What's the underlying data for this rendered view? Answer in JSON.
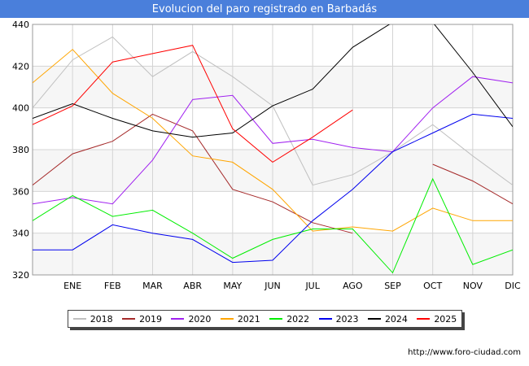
{
  "title": "Evolucion del paro registrado en Barbadás",
  "source": "http://www.foro-ciudad.com",
  "chart_data": {
    "type": "line",
    "title": "Evolucion del paro registrado en Barbadás",
    "categories": [
      "",
      "ENE",
      "FEB",
      "MAR",
      "ABR",
      "MAY",
      "JUN",
      "JUL",
      "AGO",
      "SEP",
      "OCT",
      "NOV",
      "DIC"
    ],
    "ylim": [
      320,
      440
    ],
    "yticks": [
      320,
      340,
      360,
      380,
      400,
      420,
      440
    ],
    "grid": true,
    "legend_position": "bottom",
    "series": [
      {
        "name": "2018",
        "color": "#c0c0c0",
        "values": [
          400,
          423,
          434,
          415,
          427,
          415,
          401,
          363,
          368,
          379,
          392,
          377,
          363
        ]
      },
      {
        "name": "2019",
        "color": "#a52a2a",
        "values": [
          363,
          378,
          384,
          397,
          389,
          361,
          355,
          345,
          340,
          null,
          373,
          365,
          354
        ]
      },
      {
        "name": "2020",
        "color": "#a020f0",
        "values": [
          354,
          357,
          354,
          375,
          404,
          406,
          383,
          385,
          381,
          379,
          400,
          415,
          412
        ]
      },
      {
        "name": "2021",
        "color": "#ffa500",
        "values": [
          412,
          428,
          407,
          395,
          377,
          374,
          361,
          341,
          343,
          341,
          352,
          346,
          346
        ]
      },
      {
        "name": "2022",
        "color": "#00ee00",
        "values": [
          346,
          358,
          348,
          351,
          340,
          328,
          337,
          342,
          342,
          321,
          366,
          325,
          332
        ]
      },
      {
        "name": "2023",
        "color": "#0000ee",
        "values": [
          332,
          332,
          344,
          340,
          337,
          326,
          327,
          346,
          361,
          379,
          388,
          397,
          395
        ]
      },
      {
        "name": "2024",
        "color": "#000000",
        "values": [
          395,
          402,
          395,
          389,
          386,
          388,
          401,
          409,
          429,
          441,
          441,
          417,
          391
        ]
      },
      {
        "name": "2025",
        "color": "#ff0000",
        "values": [
          392,
          401,
          422,
          426,
          430,
          390,
          374,
          386,
          399,
          null,
          null,
          null,
          null
        ]
      }
    ]
  }
}
